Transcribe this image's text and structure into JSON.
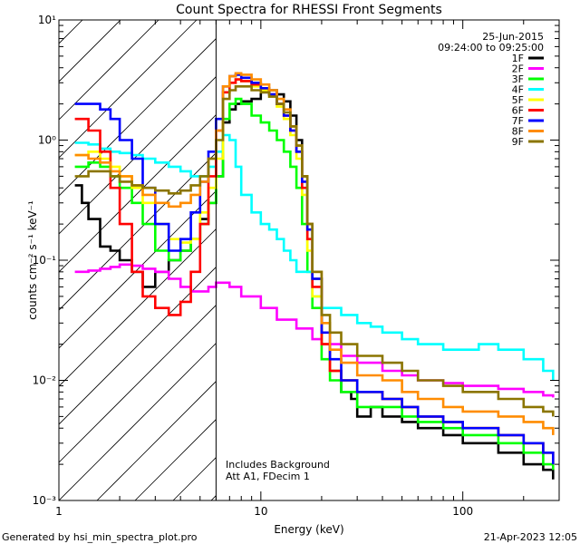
{
  "chart_data": {
    "type": "line",
    "title": "Count Spectra for RHESSI Front Segments",
    "xlabel": "Energy (keV)",
    "ylabel": "counts cm⁻² s⁻¹ keV⁻¹",
    "xscale": "log",
    "yscale": "log",
    "xlim": [
      1,
      300
    ],
    "ylim": [
      0.001,
      10
    ],
    "x_ticks": [
      {
        "value": 1,
        "label": "1"
      },
      {
        "value": 10,
        "label": "10"
      },
      {
        "value": 100,
        "label": "100"
      }
    ],
    "y_ticks": [
      {
        "value": 10,
        "label": "10¹"
      },
      {
        "value": 1,
        "label": "10⁰"
      },
      {
        "value": 0.1,
        "label": "10⁻¹"
      },
      {
        "value": 0.01,
        "label": "10⁻²"
      },
      {
        "value": 0.001,
        "label": "10⁻³"
      }
    ],
    "date": "25-Jun-2015",
    "time_range": "09:24:00 to 09:25:00",
    "shaded_below_keV": 6,
    "notes": [
      "Includes Background",
      "Att A1, FDecim 1"
    ],
    "legend_position": "top-right",
    "series": [
      {
        "name": "1F",
        "color": "#000000",
        "x": [
          1.2,
          1.3,
          1.4,
          1.6,
          1.8,
          2.0,
          2.3,
          2.6,
          3.0,
          3.5,
          4.0,
          4.5,
          5.0,
          5.5,
          6.0,
          6.5,
          7.0,
          7.5,
          8.0,
          9.0,
          10,
          11,
          12,
          13,
          14,
          15,
          16,
          17,
          18,
          20,
          22,
          25,
          28,
          30,
          35,
          40,
          50,
          60,
          80,
          100,
          150,
          200,
          250,
          280
        ],
        "y": [
          0.42,
          0.3,
          0.22,
          0.13,
          0.12,
          0.1,
          0.08,
          0.06,
          0.08,
          0.1,
          0.12,
          0.15,
          0.22,
          0.3,
          0.5,
          1.4,
          1.8,
          2.0,
          2.1,
          2.2,
          2.5,
          2.6,
          2.4,
          2.1,
          1.6,
          1.0,
          0.5,
          0.2,
          0.07,
          0.02,
          0.012,
          0.008,
          0.007,
          0.005,
          0.006,
          0.005,
          0.0045,
          0.004,
          0.0035,
          0.003,
          0.0025,
          0.002,
          0.0018,
          0.0015
        ]
      },
      {
        "name": "2F",
        "color": "#ff00ff",
        "x": [
          1.2,
          1.4,
          1.6,
          1.8,
          2.0,
          2.3,
          2.6,
          3.0,
          3.5,
          4.0,
          4.5,
          5.0,
          5.5,
          6.0,
          7.0,
          8.0,
          10,
          12,
          15,
          18,
          20,
          25,
          30,
          40,
          50,
          60,
          80,
          100,
          150,
          200,
          250,
          280
        ],
        "y": [
          0.08,
          0.082,
          0.085,
          0.088,
          0.092,
          0.09,
          0.085,
          0.08,
          0.07,
          0.06,
          0.055,
          0.055,
          0.06,
          0.065,
          0.06,
          0.05,
          0.04,
          0.032,
          0.027,
          0.022,
          0.02,
          0.016,
          0.014,
          0.012,
          0.011,
          0.01,
          0.0095,
          0.009,
          0.0085,
          0.008,
          0.0075,
          0.0072
        ]
      },
      {
        "name": "3F",
        "color": "#00ff00",
        "x": [
          1.2,
          1.4,
          1.6,
          1.8,
          2.0,
          2.3,
          2.6,
          3.0,
          3.5,
          4.0,
          4.5,
          5.0,
          5.5,
          6.0,
          6.5,
          7.0,
          7.5,
          8.0,
          9.0,
          10,
          11,
          12,
          13,
          14,
          15,
          16,
          17,
          18,
          20,
          22,
          25,
          30,
          40,
          50,
          60,
          80,
          100,
          150,
          200,
          250,
          280
        ],
        "y": [
          0.6,
          0.65,
          0.6,
          0.5,
          0.4,
          0.3,
          0.2,
          0.12,
          0.1,
          0.12,
          0.15,
          0.2,
          0.3,
          0.5,
          1.5,
          2.0,
          2.2,
          2.0,
          1.6,
          1.4,
          1.2,
          1.0,
          0.8,
          0.6,
          0.4,
          0.2,
          0.08,
          0.04,
          0.015,
          0.01,
          0.008,
          0.006,
          0.006,
          0.005,
          0.0045,
          0.004,
          0.0035,
          0.003,
          0.0025,
          0.002,
          0.0018
        ]
      },
      {
        "name": "4F",
        "color": "#00ffff",
        "x": [
          1.2,
          1.4,
          1.6,
          1.8,
          2.0,
          2.3,
          2.6,
          3.0,
          3.5,
          4.0,
          4.5,
          5.0,
          5.5,
          6.0,
          6.5,
          7.0,
          7.5,
          8.0,
          9.0,
          10,
          11,
          12,
          13,
          14,
          15,
          18,
          20,
          25,
          30,
          35,
          40,
          50,
          60,
          80,
          100,
          120,
          150,
          200,
          250,
          280
        ],
        "y": [
          0.95,
          0.92,
          0.85,
          0.8,
          0.78,
          0.75,
          0.7,
          0.65,
          0.6,
          0.55,
          0.5,
          0.5,
          0.6,
          0.8,
          1.1,
          1.0,
          0.6,
          0.35,
          0.25,
          0.2,
          0.18,
          0.15,
          0.12,
          0.1,
          0.08,
          0.05,
          0.04,
          0.035,
          0.03,
          0.028,
          0.025,
          0.022,
          0.02,
          0.018,
          0.018,
          0.02,
          0.018,
          0.015,
          0.012,
          0.01
        ]
      },
      {
        "name": "5F",
        "color": "#ffff00",
        "x": [
          1.2,
          1.4,
          1.6,
          1.8,
          2.0,
          2.3,
          2.6,
          3.0,
          3.5,
          4.0,
          4.5,
          5.0,
          5.5,
          6.0,
          6.5,
          7.0,
          7.5,
          8.0,
          9.0,
          10,
          11,
          12,
          13,
          14,
          15,
          16,
          17,
          18,
          20,
          22,
          25,
          30,
          40,
          50,
          60,
          80,
          100,
          150,
          200,
          250,
          280
        ],
        "y": [
          0.75,
          0.8,
          0.7,
          0.6,
          0.5,
          0.4,
          0.3,
          0.2,
          0.15,
          0.14,
          0.15,
          0.25,
          0.4,
          0.7,
          2.5,
          3.0,
          3.2,
          3.1,
          2.8,
          2.6,
          2.3,
          1.9,
          1.5,
          1.1,
          0.7,
          0.35,
          0.12,
          0.05,
          0.02,
          0.012,
          0.01,
          0.008,
          0.007,
          0.006,
          0.005,
          0.0045,
          0.004,
          0.0035,
          0.003,
          0.0025,
          0.002
        ]
      },
      {
        "name": "6F",
        "color": "#ff0000",
        "x": [
          1.2,
          1.4,
          1.6,
          1.8,
          2.0,
          2.3,
          2.6,
          3.0,
          3.5,
          4.0,
          4.5,
          5.0,
          5.5,
          6.0,
          6.5,
          7.0,
          7.5,
          8.0,
          9.0,
          10,
          11,
          12,
          13,
          14,
          15,
          16,
          17,
          18,
          20,
          22,
          25,
          30,
          40,
          50,
          60,
          80,
          100,
          150,
          200,
          250,
          280
        ],
        "y": [
          1.5,
          1.2,
          0.8,
          0.4,
          0.2,
          0.08,
          0.05,
          0.04,
          0.035,
          0.045,
          0.08,
          0.2,
          0.5,
          1.2,
          2.5,
          3.0,
          3.2,
          3.1,
          2.9,
          2.7,
          2.4,
          2.0,
          1.6,
          1.2,
          0.8,
          0.4,
          0.15,
          0.06,
          0.02,
          0.012,
          0.01,
          0.008,
          0.007,
          0.006,
          0.005,
          0.0045,
          0.004,
          0.0035,
          0.003,
          0.0025,
          0.002
        ]
      },
      {
        "name": "7F",
        "color": "#0000ff",
        "x": [
          1.2,
          1.4,
          1.6,
          1.8,
          2.0,
          2.3,
          2.6,
          3.0,
          3.5,
          4.0,
          4.5,
          5.0,
          5.5,
          6.0,
          6.5,
          7.0,
          7.5,
          8.0,
          9.0,
          10,
          11,
          12,
          13,
          14,
          15,
          16,
          17,
          18,
          20,
          22,
          25,
          30,
          40,
          50,
          60,
          80,
          100,
          150,
          200,
          250,
          280
        ],
        "y": [
          2.0,
          2.0,
          1.8,
          1.5,
          1.0,
          0.7,
          0.4,
          0.2,
          0.12,
          0.15,
          0.25,
          0.45,
          0.8,
          1.5,
          2.8,
          3.4,
          3.5,
          3.3,
          3.0,
          2.7,
          2.4,
          2.0,
          1.6,
          1.2,
          0.8,
          0.45,
          0.18,
          0.07,
          0.025,
          0.015,
          0.01,
          0.008,
          0.007,
          0.006,
          0.005,
          0.0045,
          0.004,
          0.0035,
          0.003,
          0.0025,
          0.002
        ]
      },
      {
        "name": "8F",
        "color": "#ff8c00",
        "x": [
          1.2,
          1.4,
          1.6,
          1.8,
          2.0,
          2.3,
          2.6,
          3.0,
          3.5,
          4.0,
          4.5,
          5.0,
          5.5,
          6.0,
          6.5,
          7.0,
          7.5,
          8.0,
          9.0,
          10,
          11,
          12,
          13,
          14,
          15,
          16,
          17,
          18,
          20,
          22,
          25,
          30,
          40,
          50,
          60,
          80,
          100,
          150,
          200,
          250,
          280
        ],
        "y": [
          0.75,
          0.7,
          0.65,
          0.55,
          0.5,
          0.42,
          0.35,
          0.3,
          0.28,
          0.3,
          0.35,
          0.45,
          0.7,
          1.2,
          2.8,
          3.4,
          3.6,
          3.5,
          3.2,
          2.9,
          2.6,
          2.2,
          1.8,
          1.3,
          0.9,
          0.5,
          0.2,
          0.08,
          0.03,
          0.018,
          0.014,
          0.011,
          0.01,
          0.008,
          0.007,
          0.006,
          0.0055,
          0.005,
          0.0045,
          0.004,
          0.0035
        ]
      },
      {
        "name": "9F",
        "color": "#8b7500",
        "x": [
          1.2,
          1.4,
          1.6,
          1.8,
          2.0,
          2.3,
          2.6,
          3.0,
          3.5,
          4.0,
          4.5,
          5.0,
          5.5,
          6.0,
          6.5,
          7.0,
          7.5,
          8.0,
          9.0,
          10,
          11,
          12,
          13,
          14,
          15,
          16,
          17,
          18,
          20,
          22,
          25,
          30,
          40,
          50,
          60,
          80,
          100,
          150,
          200,
          250,
          280
        ],
        "y": [
          0.5,
          0.55,
          0.55,
          0.5,
          0.45,
          0.42,
          0.4,
          0.38,
          0.36,
          0.38,
          0.42,
          0.5,
          0.7,
          1.0,
          2.2,
          2.6,
          2.8,
          2.8,
          2.6,
          2.5,
          2.3,
          2.0,
          1.7,
          1.3,
          0.9,
          0.5,
          0.2,
          0.08,
          0.035,
          0.025,
          0.02,
          0.016,
          0.014,
          0.012,
          0.01,
          0.009,
          0.008,
          0.007,
          0.006,
          0.0055,
          0.005
        ]
      }
    ]
  },
  "footer": {
    "left": "Generated by hsi_min_spectra_plot.pro",
    "right": "21-Apr-2023 12:05"
  }
}
